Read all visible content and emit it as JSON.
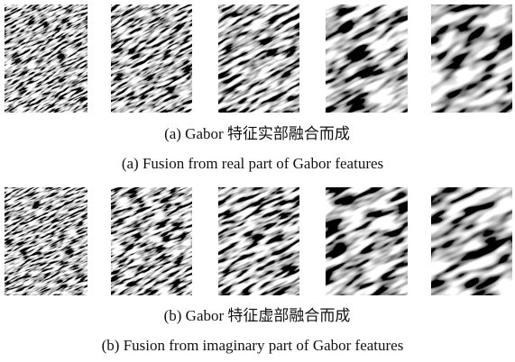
{
  "figure": {
    "rows": [
      {
        "caption_zh": "(a) Gabor 特征实部融合而成",
        "caption_en": "(a) Fusion from real part of Gabor features"
      },
      {
        "caption_zh": "(b) Gabor 特征虚部融合而成",
        "caption_en": "(b) Fusion from imaginary part of Gabor features"
      }
    ]
  }
}
